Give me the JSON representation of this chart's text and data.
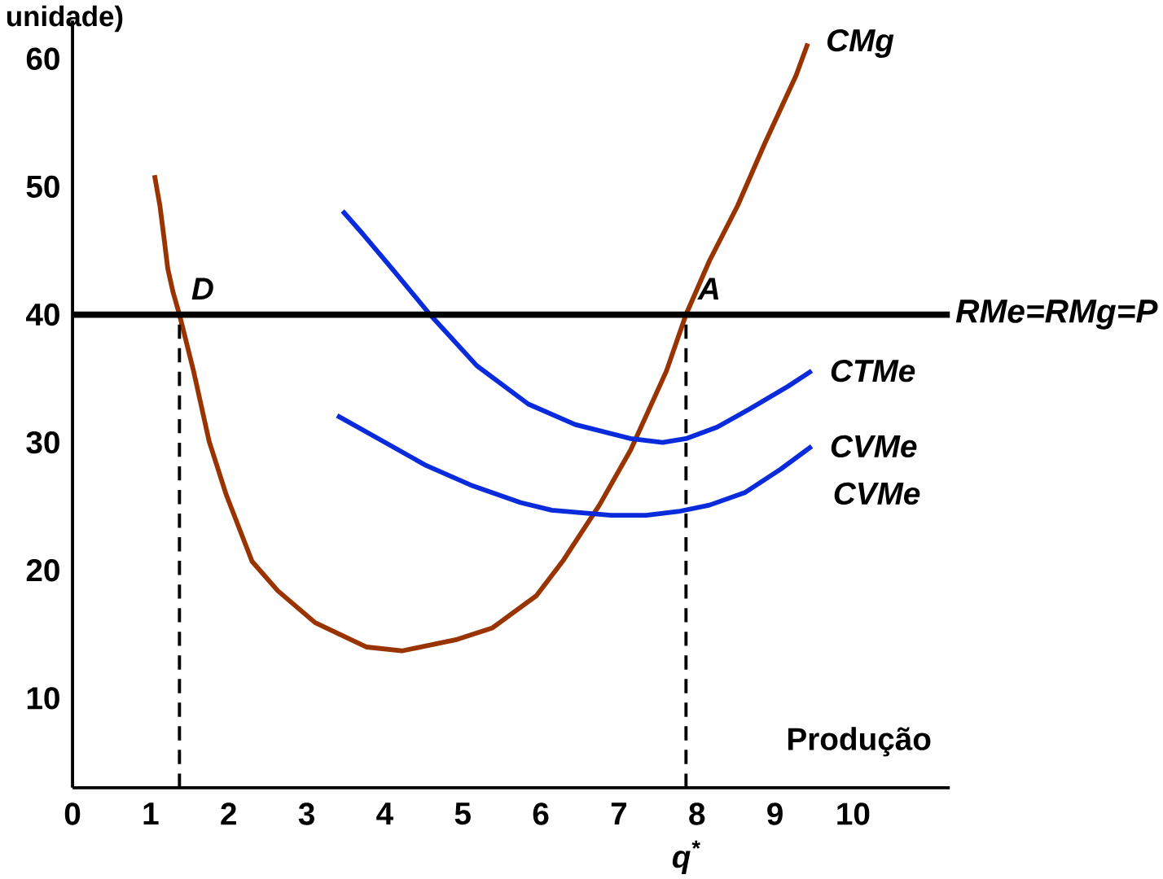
{
  "chart_data": {
    "type": "line",
    "xlabel": "Produção",
    "ylabel": "unidade)",
    "xlim": [
      0,
      11.24
    ],
    "ylim": [
      3,
      63
    ],
    "xticks": [
      0,
      1,
      2,
      3,
      4,
      5,
      6,
      7,
      8,
      9,
      10
    ],
    "yticks": [
      10,
      20,
      30,
      40,
      50,
      60
    ],
    "marker": "none",
    "series": [
      {
        "name": "CMg",
        "color": "#993300",
        "x": [
          1.05,
          1.12,
          1.17,
          1.22,
          1.29,
          1.37,
          1.55,
          1.75,
          1.97,
          2.3,
          2.63,
          3.11,
          3.77,
          4.22,
          4.93,
          5.38,
          5.94,
          6.29,
          6.75,
          7.15,
          7.61,
          7.86,
          8.16,
          8.52,
          8.87,
          9.27,
          9.42
        ],
        "values": [
          50.9,
          48.5,
          46.1,
          43.6,
          41.7,
          40,
          35.6,
          30.1,
          25.9,
          20.7,
          18.4,
          15.9,
          14,
          13.7,
          14.6,
          15.5,
          18,
          20.8,
          25.1,
          29.4,
          35.6,
          40,
          44.2,
          48.5,
          53.4,
          58.7,
          61.2
        ]
      },
      {
        "name": "CTMe",
        "color": "#0a2bdb",
        "x": [
          3.46,
          3.72,
          4.12,
          4.58,
          5.18,
          5.84,
          6.44,
          7.15,
          7.56,
          7.86,
          8.26,
          8.67,
          9.17,
          9.47
        ],
        "values": [
          48.1,
          46.3,
          43.4,
          40,
          36,
          33,
          31.4,
          30.3,
          30,
          30.3,
          31.2,
          32.6,
          34.4,
          35.6
        ]
      },
      {
        "name": "CVMe",
        "color": "#0a2bdb",
        "x": [
          3.39,
          3.77,
          4.53,
          5.13,
          5.74,
          6.14,
          6.9,
          7.35,
          7.76,
          8.16,
          8.62,
          9.07,
          9.47
        ],
        "values": [
          32.1,
          30.8,
          28.2,
          26.6,
          25.3,
          24.7,
          24.3,
          24.3,
          24.6,
          25.1,
          26.1,
          27.9,
          29.7
        ]
      }
    ],
    "ref_lines": [
      {
        "axis": "y",
        "value": 40,
        "label": "RMe=RMg=P",
        "color": "#000000",
        "line_style": "solid"
      },
      {
        "axis": "x",
        "value": 1.37,
        "label": null,
        "color": "#000000",
        "line_style": "dashed"
      },
      {
        "axis": "x",
        "value": 7.86,
        "label": "q$^{*}$",
        "color": "#000000",
        "line_style": "dashed"
      }
    ],
    "annotations": [
      {
        "text": "D",
        "x": 1.37,
        "y": 40
      },
      {
        "text": "A",
        "x": 7.86,
        "y": 40
      },
      "CVMe"
    ]
  }
}
